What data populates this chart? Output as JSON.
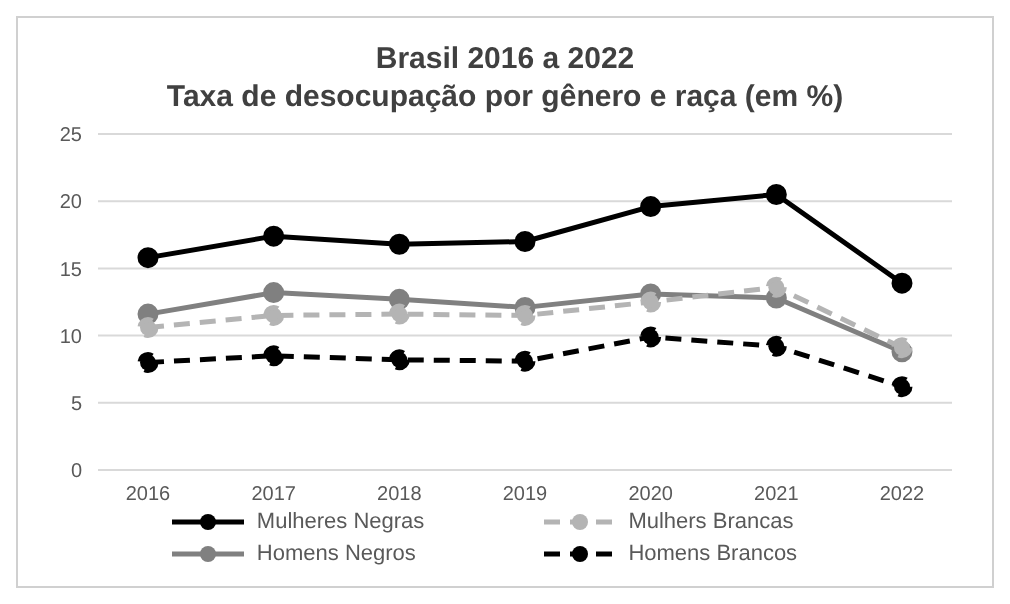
{
  "chart_data": {
    "type": "line",
    "title": "Brasil 2016 a 2022",
    "subtitle": "Taxa de desocupação por gênero e raça (em %)",
    "categories": [
      "2016",
      "2017",
      "2018",
      "2019",
      "2020",
      "2021",
      "2022"
    ],
    "series": [
      {
        "name": "Mulheres Negras",
        "color": "#000000",
        "line_style": "solid",
        "values": [
          15.8,
          17.4,
          16.8,
          17.0,
          19.6,
          20.5,
          13.9
        ]
      },
      {
        "name": "Mulhers Brancas",
        "color": "#b4b4b4",
        "line_style": "dashed",
        "values": [
          10.6,
          11.5,
          11.6,
          11.5,
          12.5,
          13.6,
          9.1
        ]
      },
      {
        "name": "Homens Negros",
        "color": "#808080",
        "line_style": "solid",
        "values": [
          11.6,
          13.2,
          12.7,
          12.1,
          13.1,
          12.8,
          8.8
        ]
      },
      {
        "name": "Homens Brancos",
        "color": "#000000",
        "line_style": "dashed",
        "values": [
          8.0,
          8.5,
          8.2,
          8.1,
          9.9,
          9.2,
          6.2
        ]
      }
    ],
    "ylim": [
      0,
      25
    ],
    "yticks": [
      0,
      5,
      10,
      15,
      20,
      25
    ],
    "grid": "y",
    "legend": "bottom",
    "marker": "circle"
  }
}
